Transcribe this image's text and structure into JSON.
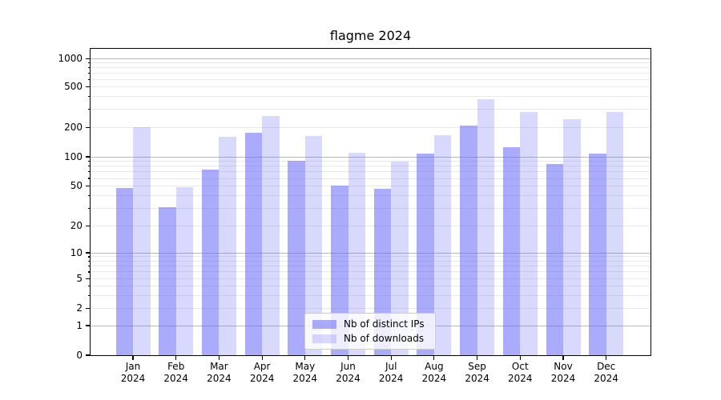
{
  "title": "flagme 2024",
  "colors": {
    "bar_distinct_ips": "rgba(102,102,250,0.55)",
    "bar_downloads": "rgba(102,102,250,0.25)",
    "grid_major": "#b8b8b8",
    "grid_minor": "#e9e9e9",
    "axis_line": "#000000",
    "legend_bg": "rgba(255,255,255,0.8)",
    "legend_border": "#cccccc"
  },
  "chart_data": {
    "type": "bar",
    "title": "flagme 2024",
    "categories": [
      "Jan 2024",
      "Feb 2024",
      "Mar 2024",
      "Apr 2024",
      "May 2024",
      "Jun 2024",
      "Jul 2024",
      "Aug 2024",
      "Sep 2024",
      "Oct 2024",
      "Nov 2024",
      "Dec 2024"
    ],
    "series": [
      {
        "name": "Nb of distinct IPs",
        "values": [
          48,
          31,
          74,
          176,
          91,
          51,
          47,
          107,
          207,
          125,
          85,
          107
        ]
      },
      {
        "name": "Nb of downloads",
        "values": [
          200,
          49,
          160,
          260,
          163,
          110,
          90,
          167,
          380,
          285,
          240,
          285
        ]
      }
    ],
    "yscale": "symlog",
    "y_tick_labels": [
      0,
      1,
      2,
      5,
      10,
      20,
      50,
      100,
      200,
      500,
      1000
    ],
    "ylim": [
      0,
      1300
    ],
    "grid": true,
    "legend_position": "lower center"
  }
}
